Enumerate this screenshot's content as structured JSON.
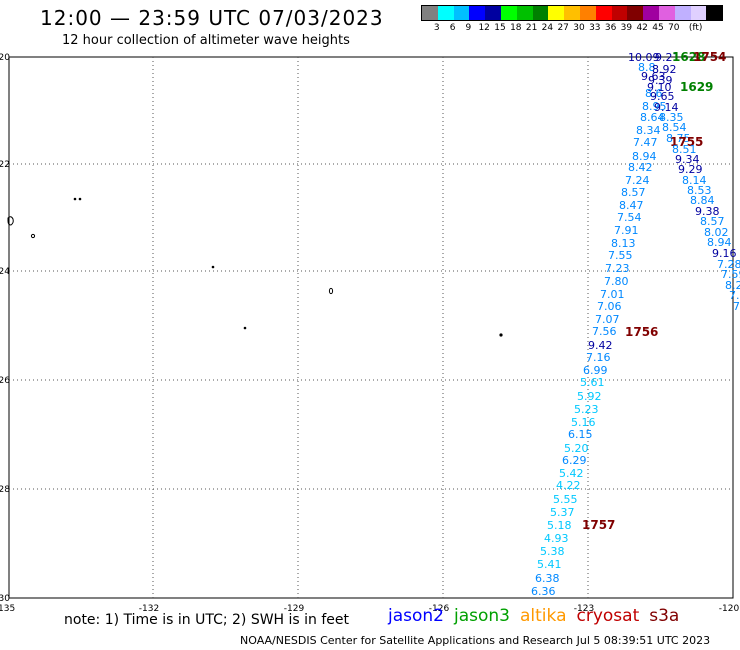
{
  "title": "12:00 — 23:59 UTC 07/03/2023",
  "subtitle": "12 hour collection of altimeter wave heights",
  "legend": {
    "colors": [
      "#808080",
      "#00ffff",
      "#00bfff",
      "#0000ff",
      "#0000a0",
      "#00ff00",
      "#00c000",
      "#008000",
      "#ffff00",
      "#ffbf00",
      "#ff8000",
      "#ff0000",
      "#c00000",
      "#800000",
      "#a000a0",
      "#e060e0",
      "#c0b0ff",
      "#e0d0ff",
      "#000000"
    ],
    "ticks": [
      "3",
      "6",
      "9",
      "12",
      "15",
      "18",
      "21",
      "24",
      "27",
      "30",
      "33",
      "36",
      "39",
      "42",
      "45",
      "70",
      "(ft)"
    ]
  },
  "axes": {
    "x_ticks": [
      "-135",
      "-132",
      "-129",
      "-126",
      "-123",
      "-120"
    ],
    "y_ticks": [
      "-20",
      "-22",
      "-24",
      "-26",
      "-28",
      "-30"
    ]
  },
  "track_labels": [
    {
      "text": "10.09",
      "color": "#0000a0"
    },
    {
      "text": "9.21",
      "color": "#0000a0"
    },
    {
      "text": "1628",
      "color": "#008000"
    },
    {
      "text": "1754",
      "color": "#800000"
    },
    {
      "text": "8.8",
      "color": "#0088ff"
    },
    {
      "text": "8.92",
      "color": "#0000a0"
    },
    {
      "text": "9.63",
      "color": "#0000a0"
    },
    {
      "text": "9.39",
      "color": "#0000a0"
    },
    {
      "text": "9.10",
      "color": "#0000a0"
    },
    {
      "text": "1629",
      "color": "#008000"
    },
    {
      "text": "8.6",
      "color": "#0088ff"
    },
    {
      "text": "9.65",
      "color": "#0000a0"
    },
    {
      "text": "8.95",
      "color": "#0088ff"
    },
    {
      "text": "9.14",
      "color": "#0000a0"
    },
    {
      "text": "8.64",
      "color": "#0088ff"
    },
    {
      "text": "8.35",
      "color": "#0088ff"
    },
    {
      "text": "8.34",
      "color": "#0088ff"
    },
    {
      "text": "8.54",
      "color": "#0088ff"
    },
    {
      "text": "7.47",
      "color": "#0088ff"
    },
    {
      "text": "8.75",
      "color": "#0088ff"
    },
    {
      "text": "1755",
      "color": "#800000"
    },
    {
      "text": "8.94",
      "color": "#0088ff"
    },
    {
      "text": "8.51",
      "color": "#0088ff"
    },
    {
      "text": "9.34",
      "color": "#0000a0"
    },
    {
      "text": "8.42",
      "color": "#0088ff"
    },
    {
      "text": "9.29",
      "color": "#0000a0"
    },
    {
      "text": "7.24",
      "color": "#0088ff"
    },
    {
      "text": "8.14",
      "color": "#0088ff"
    },
    {
      "text": "8.57",
      "color": "#0088ff"
    },
    {
      "text": "8.53",
      "color": "#0088ff"
    },
    {
      "text": "8.47",
      "color": "#0088ff"
    },
    {
      "text": "8.84",
      "color": "#0088ff"
    },
    {
      "text": "7.54",
      "color": "#0088ff"
    },
    {
      "text": "9.38",
      "color": "#0000a0"
    },
    {
      "text": "7.91",
      "color": "#0088ff"
    },
    {
      "text": "8.57",
      "color": "#0088ff"
    },
    {
      "text": "8.13",
      "color": "#0088ff"
    },
    {
      "text": "8.02",
      "color": "#0088ff"
    },
    {
      "text": "7.55",
      "color": "#0088ff"
    },
    {
      "text": "8.94",
      "color": "#0088ff"
    },
    {
      "text": "9.16",
      "color": "#0000a0"
    },
    {
      "text": "7.80",
      "color": "#0088ff"
    },
    {
      "text": "7.23",
      "color": "#0088ff"
    },
    {
      "text": "7.28",
      "color": "#0088ff"
    },
    {
      "text": "7.59",
      "color": "#0088ff"
    },
    {
      "text": "7.01",
      "color": "#0088ff"
    },
    {
      "text": "8.2",
      "color": "#0088ff"
    },
    {
      "text": "7.06",
      "color": "#0088ff"
    },
    {
      "text": "7.",
      "color": "#0088ff"
    },
    {
      "text": "7.07",
      "color": "#0088ff"
    },
    {
      "text": "7",
      "color": "#0088ff"
    },
    {
      "text": "7.56",
      "color": "#0088ff"
    },
    {
      "text": "1756",
      "color": "#800000"
    },
    {
      "text": "9.42",
      "color": "#0000a0"
    },
    {
      "text": "7.16",
      "color": "#0088ff"
    },
    {
      "text": "6.99",
      "color": "#0088ff"
    },
    {
      "text": "5.61",
      "color": "#00c8ff"
    },
    {
      "text": "5.92",
      "color": "#00c8ff"
    },
    {
      "text": "5.23",
      "color": "#00c8ff"
    },
    {
      "text": "5.16",
      "color": "#00c8ff"
    },
    {
      "text": "6.15",
      "color": "#0088ff"
    },
    {
      "text": "5.20",
      "color": "#00c8ff"
    },
    {
      "text": "6.29",
      "color": "#0088ff"
    },
    {
      "text": "5.42",
      "color": "#00c8ff"
    },
    {
      "text": "4.22",
      "color": "#00c8ff"
    },
    {
      "text": "5.55",
      "color": "#00c8ff"
    },
    {
      "text": "5.37",
      "color": "#00c8ff"
    },
    {
      "text": "5.18",
      "color": "#00c8ff"
    },
    {
      "text": "1757",
      "color": "#800000"
    },
    {
      "text": "4.93",
      "color": "#00c8ff"
    },
    {
      "text": "5.38",
      "color": "#00c8ff"
    },
    {
      "text": "5.41",
      "color": "#00c8ff"
    },
    {
      "text": "6.38",
      "color": "#0088ff"
    },
    {
      "text": "6.36",
      "color": "#0088ff"
    }
  ],
  "note": "note: 1) Time is in UTC; 2) SWH is in feet",
  "satellites": [
    {
      "name": "jason2",
      "color": "#0000ff"
    },
    {
      "name": "jason3",
      "color": "#00a000"
    },
    {
      "name": "altika",
      "color": "#ff9900"
    },
    {
      "name": "cryosat",
      "color": "#c00000"
    },
    {
      "name": "s3a",
      "color": "#800000"
    }
  ],
  "credit": "NOAA/NESDIS Center for Satellite Applications and Research   Jul  5 08:39:51 UTC 2023"
}
